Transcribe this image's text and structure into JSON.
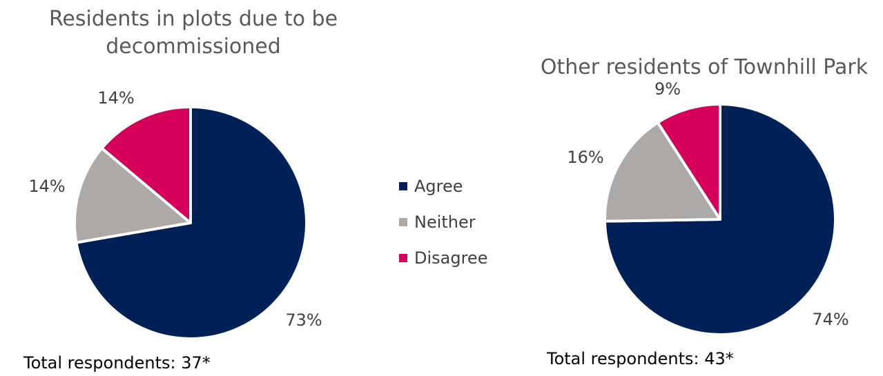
{
  "legend": [
    {
      "label": "Agree",
      "color": "#002157"
    },
    {
      "label": "Neither",
      "color": "#ACA9A7"
    },
    {
      "label": "Disagree",
      "color": "#D6005A"
    }
  ],
  "chart_data": [
    {
      "type": "pie",
      "title": "Residents in plots due to be decommissioned",
      "categories": [
        "Agree",
        "Neither",
        "Disagree"
      ],
      "values": [
        73,
        14,
        14
      ],
      "labels": [
        "73%",
        "14%",
        "14%"
      ],
      "colors": [
        "#002157",
        "#ACA9A7",
        "#D6005A"
      ],
      "footnote": "Total respondents: 37*"
    },
    {
      "type": "pie",
      "title": "Other residents of Townhill Park",
      "categories": [
        "Agree",
        "Neither",
        "Disagree"
      ],
      "values": [
        74,
        16,
        9
      ],
      "labels": [
        "74%",
        "16%",
        "9%"
      ],
      "colors": [
        "#002157",
        "#ACA9A7",
        "#D6005A"
      ],
      "footnote": "Total respondents: 43*"
    }
  ]
}
